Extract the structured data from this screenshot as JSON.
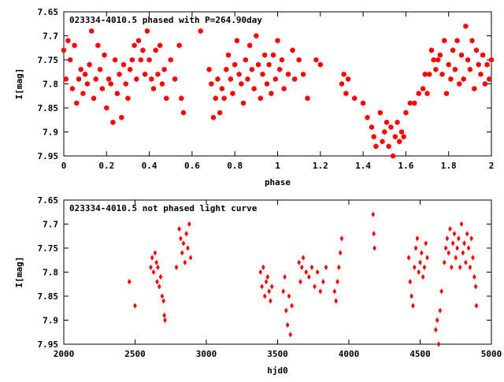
{
  "chart_data": [
    {
      "type": "scatter",
      "title": "023334-4010.5 phased with P=264.90day",
      "xlabel": "phase",
      "ylabel": "I[mag]",
      "xlim": [
        0,
        2
      ],
      "ylim": [
        7.65,
        7.95
      ],
      "y_inverted": true,
      "x_ticks": [
        0,
        0.2,
        0.4,
        0.6,
        0.8,
        1,
        1.2,
        1.4,
        1.6,
        1.8,
        2
      ],
      "x_tick_labels": [
        "0",
        "0.2",
        "0.4",
        "0.6",
        "0.8",
        "1",
        "1.2",
        "1.4",
        "1.6",
        "1.8",
        "2"
      ],
      "y_ticks": [
        7.65,
        7.7,
        7.75,
        7.8,
        7.85,
        7.9,
        7.95
      ],
      "y_tick_labels": [
        "7.65",
        "7.7",
        "7.75",
        "7.8",
        "7.85",
        "7.9",
        "7.95"
      ],
      "grid": false,
      "marker": "hexagon",
      "color": "#ff0000",
      "points": [
        [
          0.0,
          7.73
        ],
        [
          0.01,
          7.79
        ],
        [
          0.02,
          7.71
        ],
        [
          0.03,
          7.75
        ],
        [
          0.04,
          7.81
        ],
        [
          0.05,
          7.72
        ],
        [
          0.06,
          7.84
        ],
        [
          0.07,
          7.79
        ],
        [
          0.08,
          7.77
        ],
        [
          0.09,
          7.82
        ],
        [
          0.1,
          7.78
        ],
        [
          0.11,
          7.8
        ],
        [
          0.12,
          7.76
        ],
        [
          0.13,
          7.69
        ],
        [
          0.14,
          7.83
        ],
        [
          0.15,
          7.79
        ],
        [
          0.16,
          7.72
        ],
        [
          0.17,
          7.77
        ],
        [
          0.18,
          7.81
        ],
        [
          0.19,
          7.74
        ],
        [
          0.2,
          7.85
        ],
        [
          0.21,
          7.79
        ],
        [
          0.22,
          7.8
        ],
        [
          0.23,
          7.88
        ],
        [
          0.24,
          7.75
        ],
        [
          0.25,
          7.82
        ],
        [
          0.26,
          7.78
        ],
        [
          0.27,
          7.87
        ],
        [
          0.28,
          7.76
        ],
        [
          0.29,
          7.8
        ],
        [
          0.3,
          7.83
        ],
        [
          0.31,
          7.77
        ],
        [
          0.32,
          7.75
        ],
        [
          0.33,
          7.72
        ],
        [
          0.34,
          7.79
        ],
        [
          0.35,
          7.71
        ],
        [
          0.36,
          7.75
        ],
        [
          0.37,
          7.73
        ],
        [
          0.38,
          7.78
        ],
        [
          0.39,
          7.69
        ],
        [
          0.4,
          7.75
        ],
        [
          0.41,
          7.79
        ],
        [
          0.42,
          7.81
        ],
        [
          0.43,
          7.73
        ],
        [
          0.44,
          7.78
        ],
        [
          0.45,
          7.72
        ],
        [
          0.46,
          7.8
        ],
        [
          0.47,
          7.77
        ],
        [
          0.48,
          7.83
        ],
        [
          0.5,
          7.75
        ],
        [
          0.52,
          7.79
        ],
        [
          0.54,
          7.72
        ],
        [
          0.55,
          7.83
        ],
        [
          0.56,
          7.86
        ],
        [
          0.64,
          7.69
        ],
        [
          0.68,
          7.77
        ],
        [
          0.69,
          7.8
        ],
        [
          0.7,
          7.87
        ],
        [
          0.71,
          7.83
        ],
        [
          0.72,
          7.79
        ],
        [
          0.73,
          7.86
        ],
        [
          0.74,
          7.81
        ],
        [
          0.75,
          7.83
        ],
        [
          0.76,
          7.77
        ],
        [
          0.77,
          7.74
        ],
        [
          0.78,
          7.79
        ],
        [
          0.79,
          7.82
        ],
        [
          0.8,
          7.76
        ],
        [
          0.81,
          7.71
        ],
        [
          0.82,
          7.78
        ],
        [
          0.83,
          7.8
        ],
        [
          0.84,
          7.84
        ],
        [
          0.85,
          7.75
        ],
        [
          0.86,
          7.79
        ],
        [
          0.87,
          7.72
        ],
        [
          0.88,
          7.77
        ],
        [
          0.89,
          7.81
        ],
        [
          0.9,
          7.7
        ],
        [
          0.91,
          7.76
        ],
        [
          0.92,
          7.83
        ],
        [
          0.93,
          7.78
        ],
        [
          0.94,
          7.74
        ],
        [
          0.95,
          7.8
        ],
        [
          0.96,
          7.76
        ],
        [
          0.97,
          7.82
        ],
        [
          0.98,
          7.74
        ],
        [
          0.99,
          7.79
        ],
        [
          1.0,
          7.71
        ],
        [
          1.01,
          7.77
        ],
        [
          1.02,
          7.75
        ],
        [
          1.03,
          7.81
        ],
        [
          1.05,
          7.78
        ],
        [
          1.07,
          7.73
        ],
        [
          1.08,
          7.79
        ],
        [
          1.1,
          7.75
        ],
        [
          1.12,
          7.78
        ],
        [
          1.14,
          7.83
        ],
        [
          1.18,
          7.75
        ],
        [
          1.2,
          7.76
        ],
        [
          1.3,
          7.8
        ],
        [
          1.31,
          7.78
        ],
        [
          1.32,
          7.82
        ],
        [
          1.33,
          7.79
        ],
        [
          1.36,
          7.83
        ],
        [
          1.4,
          7.84
        ],
        [
          1.42,
          7.87
        ],
        [
          1.44,
          7.89
        ],
        [
          1.45,
          7.91
        ],
        [
          1.46,
          7.93
        ],
        [
          1.48,
          7.86
        ],
        [
          1.49,
          7.92
        ],
        [
          1.5,
          7.9
        ],
        [
          1.51,
          7.88
        ],
        [
          1.52,
          7.93
        ],
        [
          1.53,
          7.89
        ],
        [
          1.54,
          7.95
        ],
        [
          1.55,
          7.91
        ],
        [
          1.56,
          7.88
        ],
        [
          1.57,
          7.92
        ],
        [
          1.58,
          7.9
        ],
        [
          1.59,
          7.91
        ],
        [
          1.6,
          7.86
        ],
        [
          1.62,
          7.84
        ],
        [
          1.64,
          7.84
        ],
        [
          1.66,
          7.82
        ],
        [
          1.68,
          7.81
        ],
        [
          1.69,
          7.78
        ],
        [
          1.7,
          7.82
        ],
        [
          1.71,
          7.78
        ],
        [
          1.72,
          7.73
        ],
        [
          1.73,
          7.75
        ],
        [
          1.74,
          7.77
        ],
        [
          1.75,
          7.75
        ],
        [
          1.76,
          7.74
        ],
        [
          1.77,
          7.78
        ],
        [
          1.78,
          7.71
        ],
        [
          1.79,
          7.82
        ],
        [
          1.8,
          7.76
        ],
        [
          1.81,
          7.79
        ],
        [
          1.82,
          7.73
        ],
        [
          1.83,
          7.77
        ],
        [
          1.84,
          7.71
        ],
        [
          1.85,
          7.8
        ],
        [
          1.86,
          7.74
        ],
        [
          1.87,
          7.79
        ],
        [
          1.88,
          7.68
        ],
        [
          1.89,
          7.75
        ],
        [
          1.9,
          7.77
        ],
        [
          1.91,
          7.71
        ],
        [
          1.92,
          7.81
        ],
        [
          1.93,
          7.73
        ],
        [
          1.94,
          7.76
        ],
        [
          1.95,
          7.78
        ],
        [
          1.96,
          7.74
        ],
        [
          1.97,
          7.8
        ],
        [
          1.98,
          7.76
        ],
        [
          1.99,
          7.79
        ],
        [
          2.0,
          7.75
        ]
      ]
    },
    {
      "type": "scatter",
      "title": "023334-4010.5 not phased light curve",
      "xlabel": "hjd0",
      "ylabel": "I[mag]",
      "xlim": [
        2000,
        5000
      ],
      "ylim": [
        7.65,
        7.95
      ],
      "y_inverted": true,
      "x_ticks": [
        2000,
        2500,
        3000,
        3500,
        4000,
        4500,
        5000
      ],
      "x_tick_labels": [
        "2000",
        "2500",
        "3000",
        "3500",
        "4000",
        "4500",
        "5000"
      ],
      "y_ticks": [
        7.65,
        7.7,
        7.75,
        7.8,
        7.85,
        7.9,
        7.95
      ],
      "y_tick_labels": [
        "7.65",
        "7.7",
        "7.75",
        "7.8",
        "7.85",
        "7.9",
        "7.95"
      ],
      "grid": false,
      "marker": "diamond",
      "color": "#ff0000",
      "points": [
        [
          2460,
          7.82
        ],
        [
          2500,
          7.87
        ],
        [
          2610,
          7.79
        ],
        [
          2620,
          7.77
        ],
        [
          2630,
          7.8
        ],
        [
          2640,
          7.76
        ],
        [
          2650,
          7.78
        ],
        [
          2655,
          7.82
        ],
        [
          2660,
          7.79
        ],
        [
          2670,
          7.83
        ],
        [
          2680,
          7.81
        ],
        [
          2690,
          7.85
        ],
        [
          2700,
          7.86
        ],
        [
          2705,
          7.89
        ],
        [
          2710,
          7.9
        ],
        [
          2790,
          7.79
        ],
        [
          2810,
          7.71
        ],
        [
          2820,
          7.73
        ],
        [
          2830,
          7.76
        ],
        [
          2840,
          7.74
        ],
        [
          2850,
          7.78
        ],
        [
          2860,
          7.72
        ],
        [
          2870,
          7.75
        ],
        [
          2880,
          7.7
        ],
        [
          2890,
          7.77
        ],
        [
          3380,
          7.8
        ],
        [
          3390,
          7.83
        ],
        [
          3400,
          7.79
        ],
        [
          3410,
          7.85
        ],
        [
          3420,
          7.82
        ],
        [
          3430,
          7.81
        ],
        [
          3440,
          7.84
        ],
        [
          3450,
          7.86
        ],
        [
          3460,
          7.83
        ],
        [
          3540,
          7.84
        ],
        [
          3550,
          7.81
        ],
        [
          3560,
          7.88
        ],
        [
          3570,
          7.91
        ],
        [
          3580,
          7.85
        ],
        [
          3590,
          7.93
        ],
        [
          3600,
          7.87
        ],
        [
          3650,
          7.78
        ],
        [
          3660,
          7.82
        ],
        [
          3670,
          7.79
        ],
        [
          3680,
          7.77
        ],
        [
          3700,
          7.8
        ],
        [
          3720,
          7.81
        ],
        [
          3740,
          7.79
        ],
        [
          3760,
          7.83
        ],
        [
          3780,
          7.8
        ],
        [
          3800,
          7.84
        ],
        [
          3820,
          7.82
        ],
        [
          3840,
          7.79
        ],
        [
          3900,
          7.84
        ],
        [
          3910,
          7.86
        ],
        [
          3920,
          7.82
        ],
        [
          3930,
          7.79
        ],
        [
          3940,
          7.76
        ],
        [
          3950,
          7.73
        ],
        [
          4170,
          7.68
        ],
        [
          4175,
          7.72
        ],
        [
          4180,
          7.75
        ],
        [
          4420,
          7.77
        ],
        [
          4430,
          7.82
        ],
        [
          4440,
          7.85
        ],
        [
          4450,
          7.87
        ],
        [
          4460,
          7.79
        ],
        [
          4470,
          7.75
        ],
        [
          4480,
          7.73
        ],
        [
          4490,
          7.8
        ],
        [
          4500,
          7.78
        ],
        [
          4510,
          7.76
        ],
        [
          4520,
          7.81
        ],
        [
          4530,
          7.79
        ],
        [
          4540,
          7.74
        ],
        [
          4550,
          7.77
        ],
        [
          4610,
          7.92
        ],
        [
          4620,
          7.9
        ],
        [
          4630,
          7.95
        ],
        [
          4640,
          7.88
        ],
        [
          4650,
          7.84
        ],
        [
          4670,
          7.78
        ],
        [
          4680,
          7.75
        ],
        [
          4690,
          7.73
        ],
        [
          4700,
          7.76
        ],
        [
          4710,
          7.71
        ],
        [
          4720,
          7.79
        ],
        [
          4730,
          7.74
        ],
        [
          4740,
          7.72
        ],
        [
          4750,
          7.77
        ],
        [
          4760,
          7.75
        ],
        [
          4770,
          7.73
        ],
        [
          4780,
          7.79
        ],
        [
          4790,
          7.7
        ],
        [
          4800,
          7.76
        ],
        [
          4810,
          7.74
        ],
        [
          4820,
          7.78
        ],
        [
          4830,
          7.72
        ],
        [
          4840,
          7.75
        ],
        [
          4850,
          7.79
        ],
        [
          4860,
          7.73
        ],
        [
          4870,
          7.77
        ],
        [
          4880,
          7.81
        ],
        [
          4890,
          7.83
        ],
        [
          4895,
          7.87
        ]
      ]
    }
  ]
}
